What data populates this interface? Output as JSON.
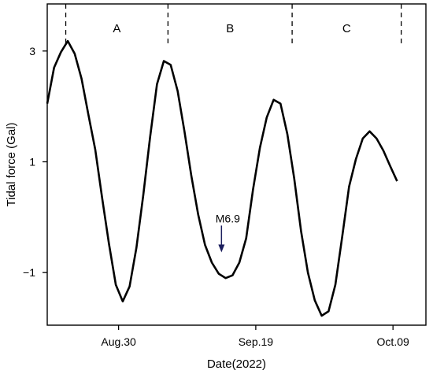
{
  "chart_data": {
    "type": "line",
    "title": "",
    "xlabel": "Date(2022)",
    "ylabel": "Tidal force (Gal)",
    "x_ticks": [
      {
        "x": 14,
        "label": "Aug.30"
      },
      {
        "x": 34,
        "label": "Sep.19"
      },
      {
        "x": 54,
        "label": "Oct.09"
      }
    ],
    "y_ticks": [
      {
        "y": 3,
        "label": "3"
      },
      {
        "y": 1,
        "label": "1"
      },
      {
        "y": -1,
        "label": "−1"
      }
    ],
    "xlim": [
      3.6,
      58.8
    ],
    "ylim": [
      -1.95,
      3.85
    ],
    "grid": false,
    "sections": {
      "boundaries": [
        6.3,
        21.2,
        39.3,
        55.2
      ],
      "labels": [
        "A",
        "B",
        "C"
      ]
    },
    "annotation": {
      "label": "M6.9",
      "x": 29.0,
      "y": -0.62,
      "arrow_color": "#1c1f5e"
    },
    "series": [
      {
        "color": "#000000",
        "points": [
          [
            3.6,
            2.05
          ],
          [
            4.6,
            2.7
          ],
          [
            5.6,
            2.98
          ],
          [
            6.6,
            3.18
          ],
          [
            7.6,
            2.95
          ],
          [
            8.6,
            2.5
          ],
          [
            9.6,
            1.85
          ],
          [
            10.6,
            1.22
          ],
          [
            11.6,
            0.35
          ],
          [
            12.6,
            -0.48
          ],
          [
            13.6,
            -1.22
          ],
          [
            14.6,
            -1.52
          ],
          [
            15.6,
            -1.25
          ],
          [
            16.6,
            -0.55
          ],
          [
            17.6,
            0.4
          ],
          [
            18.6,
            1.45
          ],
          [
            19.6,
            2.4
          ],
          [
            20.6,
            2.82
          ],
          [
            21.6,
            2.75
          ],
          [
            22.6,
            2.28
          ],
          [
            23.6,
            1.55
          ],
          [
            24.6,
            0.75
          ],
          [
            25.6,
            0.05
          ],
          [
            26.6,
            -0.5
          ],
          [
            27.6,
            -0.82
          ],
          [
            28.6,
            -1.02
          ],
          [
            29.6,
            -1.1
          ],
          [
            30.6,
            -1.05
          ],
          [
            31.6,
            -0.82
          ],
          [
            32.6,
            -0.38
          ],
          [
            33.6,
            0.5
          ],
          [
            34.6,
            1.25
          ],
          [
            35.6,
            1.8
          ],
          [
            36.6,
            2.12
          ],
          [
            37.6,
            2.05
          ],
          [
            38.6,
            1.5
          ],
          [
            39.6,
            0.7
          ],
          [
            40.6,
            -0.25
          ],
          [
            41.6,
            -1.0
          ],
          [
            42.6,
            -1.5
          ],
          [
            43.6,
            -1.78
          ],
          [
            44.6,
            -1.7
          ],
          [
            45.6,
            -1.22
          ],
          [
            46.6,
            -0.35
          ],
          [
            47.6,
            0.55
          ],
          [
            48.6,
            1.05
          ],
          [
            49.6,
            1.42
          ],
          [
            50.6,
            1.55
          ],
          [
            51.6,
            1.42
          ],
          [
            52.6,
            1.2
          ],
          [
            53.6,
            0.92
          ],
          [
            54.6,
            0.65
          ]
        ]
      }
    ]
  }
}
